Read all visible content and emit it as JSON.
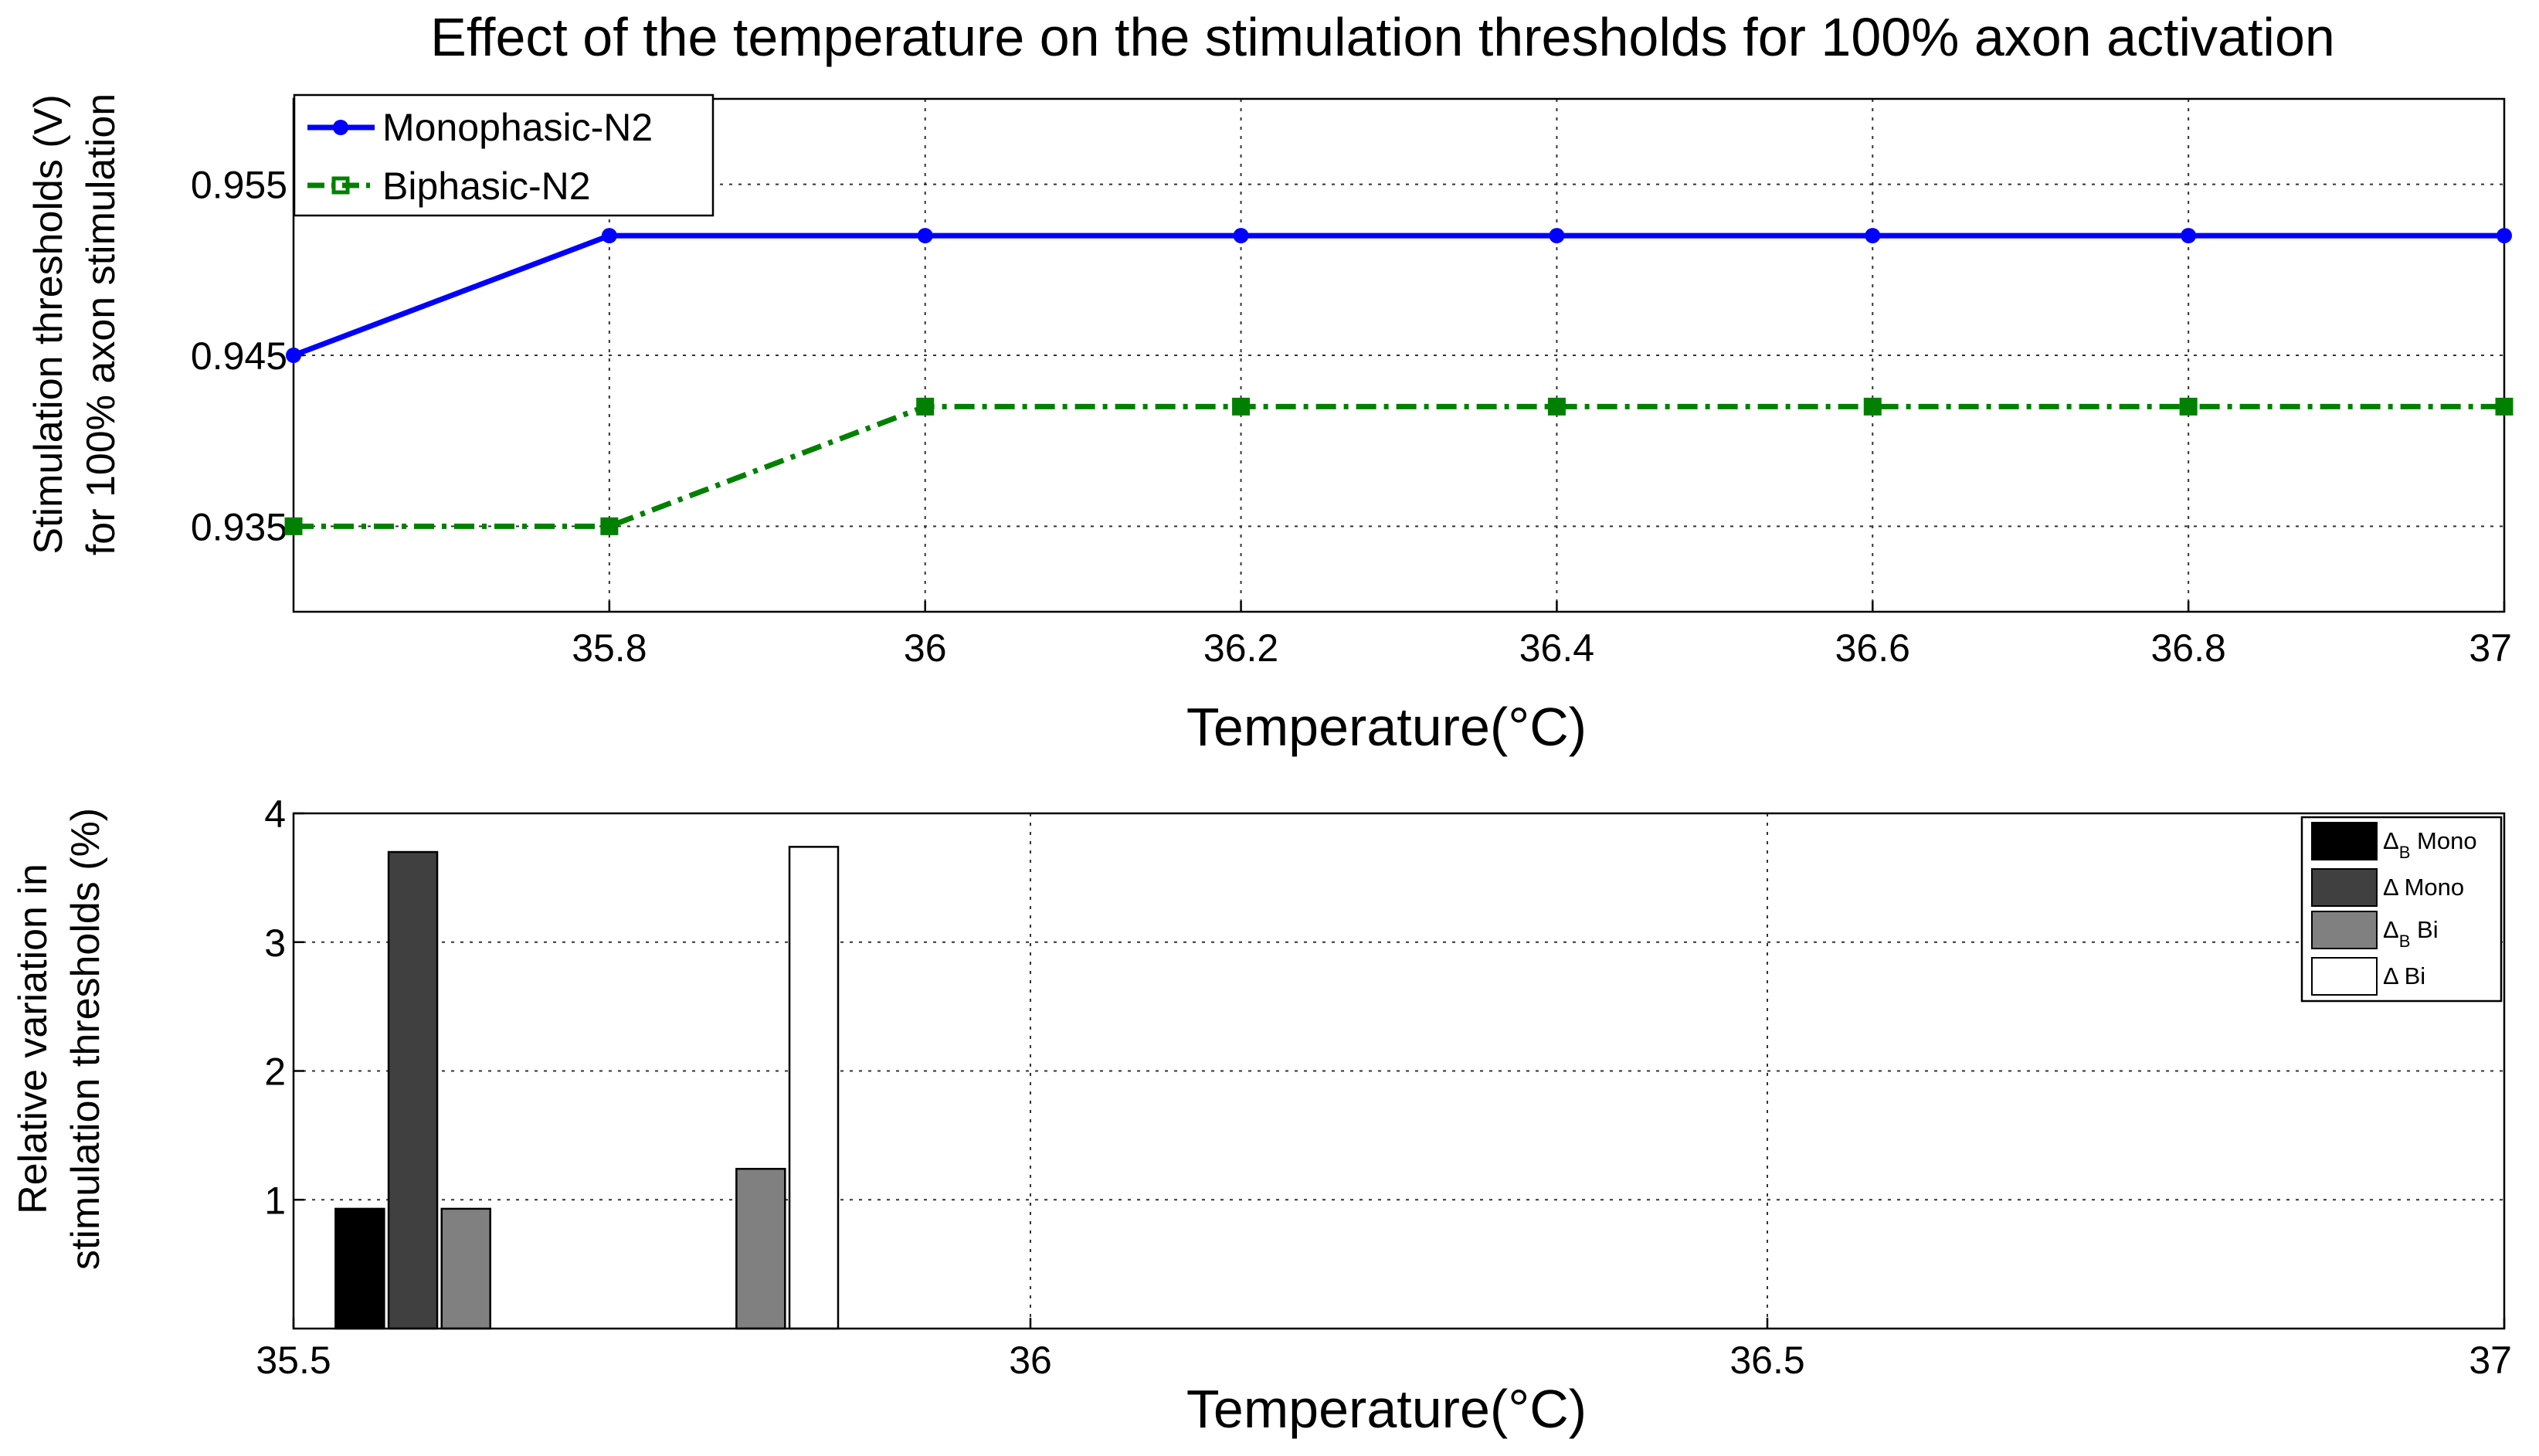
{
  "chart_data": [
    {
      "type": "line",
      "title": "Effect of the temperature on the stimulation thresholds for 100% axon activation",
      "xlabel": "Temperature(°C)",
      "ylabel": [
        "Stimulation thresholds (V)",
        "for 100% axon stimulation"
      ],
      "x": [
        35.6,
        35.8,
        36.0,
        36.2,
        36.4,
        36.6,
        36.8,
        37.0
      ],
      "xlim": [
        35.6,
        37.0
      ],
      "ylim": [
        0.93,
        0.96
      ],
      "xticks": [
        35.8,
        36.0,
        36.2,
        36.4,
        36.6,
        36.8,
        37.0
      ],
      "xtick_labels": [
        "35.8",
        "36",
        "36.2",
        "36.4",
        "36.6",
        "36.8",
        "37"
      ],
      "yticks": [
        0.935,
        0.945,
        0.955
      ],
      "ytick_labels": [
        "0.935",
        "0.945",
        "0.955"
      ],
      "grid": true,
      "legend_position": "top-left",
      "series": [
        {
          "name": "Monophasic-N2",
          "color": "#0000ff",
          "line_style": "solid",
          "marker": "circle",
          "values": [
            0.945,
            0.952,
            0.952,
            0.952,
            0.952,
            0.952,
            0.952,
            0.952
          ]
        },
        {
          "name": "Biphasic-N2",
          "color": "#008000",
          "line_style": "dash-dot",
          "marker": "square",
          "values": [
            0.935,
            0.935,
            0.942,
            0.942,
            0.942,
            0.942,
            0.942,
            0.942
          ]
        }
      ]
    },
    {
      "type": "bar",
      "xlabel": "Temperature(°C)",
      "ylabel": [
        "Relative variation in",
        "stimulation thresholds (%)"
      ],
      "xlim": [
        35.5,
        37.0
      ],
      "ylim": [
        0,
        4
      ],
      "xticks": [
        35.5,
        36.0,
        36.5,
        37.0
      ],
      "xtick_labels": [
        "35.5",
        "36",
        "36.5",
        "37"
      ],
      "yticks": [
        1,
        2,
        3,
        4
      ],
      "ytick_labels": [
        "1",
        "2",
        "3",
        "4"
      ],
      "grid": true,
      "legend_position": "top-right",
      "legend": [
        {
          "symbol": "Δ",
          "sub": "B",
          "name": "Mono",
          "color": "#000000"
        },
        {
          "symbol": "Δ",
          "sub": "",
          "name": "Mono",
          "color": "#404040"
        },
        {
          "symbol": "Δ",
          "sub": "B",
          "name": "Bi",
          "color": "#808080"
        },
        {
          "symbol": "Δ",
          "sub": "",
          "name": "Bi",
          "color": "#ffffff"
        }
      ],
      "bars": [
        {
          "series": 0,
          "x": 35.545,
          "value": 0.93
        },
        {
          "series": 1,
          "x": 35.581,
          "value": 3.7
        },
        {
          "series": 2,
          "x": 35.617,
          "value": 0.93
        },
        {
          "series": 2,
          "x": 35.817,
          "value": 1.24
        },
        {
          "series": 3,
          "x": 35.853,
          "value": 3.74
        }
      ]
    }
  ]
}
